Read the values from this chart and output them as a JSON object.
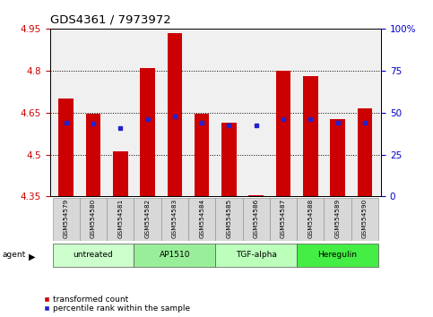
{
  "title": "GDS4361 / 7973972",
  "samples": [
    "GSM554579",
    "GSM554580",
    "GSM554581",
    "GSM554582",
    "GSM554583",
    "GSM554584",
    "GSM554585",
    "GSM554586",
    "GSM554587",
    "GSM554588",
    "GSM554589",
    "GSM554590"
  ],
  "bar_values": [
    4.7,
    4.645,
    4.51,
    4.81,
    4.935,
    4.645,
    4.615,
    4.355,
    4.8,
    4.78,
    4.625,
    4.665
  ],
  "percentile_values": [
    4.615,
    4.61,
    4.595,
    4.625,
    4.635,
    4.615,
    4.605,
    4.605,
    4.625,
    4.625,
    4.615,
    4.615
  ],
  "ymin": 4.35,
  "ymax": 4.95,
  "yticks": [
    4.35,
    4.5,
    4.65,
    4.8,
    4.95
  ],
  "bar_color": "#cc0000",
  "percentile_color": "#2222cc",
  "right_yticks": [
    0,
    25,
    50,
    75,
    100
  ],
  "groups": [
    {
      "label": "untreated",
      "start": 0,
      "end": 3,
      "color": "#ccffcc"
    },
    {
      "label": "AP1510",
      "start": 3,
      "end": 6,
      "color": "#99ee99"
    },
    {
      "label": "TGF-alpha",
      "start": 6,
      "end": 9,
      "color": "#bbffbb"
    },
    {
      "label": "Heregulin",
      "start": 9,
      "end": 12,
      "color": "#44ee44"
    }
  ],
  "legend_bar": "transformed count",
  "legend_pct": "percentile rank within the sample",
  "tick_label_color_left": "#cc0000",
  "tick_label_color_right": "#0000cc",
  "bar_bottom": 4.35,
  "plot_bg": "#f0f0f0"
}
